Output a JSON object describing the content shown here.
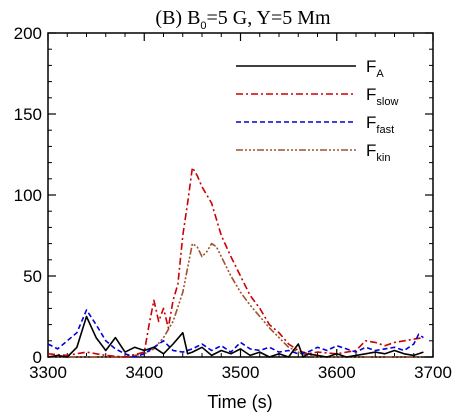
{
  "chart_data": {
    "type": "line",
    "title": "(B) B0=5 G,   Y=5 Mm",
    "title_parts": {
      "prefix": "(B) B",
      "sub": "0",
      "suffix": "=5 G,   Y=5 Mm"
    },
    "xlabel": "Time (s)",
    "ylabel": "",
    "xlim": [
      3300,
      3700
    ],
    "ylim": [
      0,
      200
    ],
    "x_ticks": [
      3300,
      3400,
      3500,
      3600,
      3700
    ],
    "y_ticks": [
      0,
      50,
      100,
      150,
      200
    ],
    "grid": false,
    "legend_position": "top-right",
    "series": [
      {
        "name": "FA",
        "label_main": "F",
        "label_sub": "A",
        "color": "#000000",
        "dash": "solid",
        "x": [
          3300,
          3310,
          3320,
          3330,
          3340,
          3350,
          3360,
          3370,
          3380,
          3390,
          3400,
          3410,
          3420,
          3430,
          3440,
          3445,
          3450,
          3460,
          3470,
          3480,
          3490,
          3500,
          3510,
          3520,
          3530,
          3540,
          3550,
          3555,
          3560,
          3565,
          3570,
          3580,
          3590,
          3600,
          3610,
          3620,
          3630,
          3640,
          3650,
          3660,
          3670,
          3680,
          3690
        ],
        "values": [
          0,
          1,
          0,
          6,
          25,
          12,
          4,
          12,
          3,
          6,
          4,
          6,
          2,
          8,
          15,
          2,
          3,
          6,
          1,
          4,
          2,
          5,
          1,
          3,
          0,
          2,
          0,
          4,
          8,
          0,
          2,
          1,
          0,
          2,
          0,
          1,
          2,
          3,
          2,
          4,
          2,
          1,
          3
        ]
      },
      {
        "name": "Fslow",
        "label_main": "F",
        "label_sub": "slow",
        "color": "#cc0000",
        "dash": "dashdot",
        "x": [
          3300,
          3320,
          3340,
          3360,
          3380,
          3400,
          3405,
          3410,
          3415,
          3420,
          3425,
          3430,
          3435,
          3440,
          3445,
          3450,
          3455,
          3460,
          3470,
          3480,
          3490,
          3500,
          3510,
          3520,
          3530,
          3540,
          3550,
          3560,
          3570,
          3580,
          3600,
          3620,
          3630,
          3640,
          3650,
          3660,
          3680,
          3690
        ],
        "values": [
          2,
          1,
          3,
          1,
          0,
          3,
          20,
          35,
          22,
          30,
          18,
          35,
          45,
          75,
          95,
          117,
          112,
          105,
          95,
          75,
          62,
          50,
          38,
          30,
          20,
          15,
          8,
          4,
          2,
          3,
          2,
          4,
          10,
          9,
          7,
          9,
          11,
          12
        ]
      },
      {
        "name": "Ffast",
        "label_main": "F",
        "label_sub": "fast",
        "color": "#0000dd",
        "dash": "dashed",
        "x": [
          3300,
          3310,
          3320,
          3330,
          3340,
          3350,
          3360,
          3370,
          3380,
          3390,
          3400,
          3410,
          3420,
          3430,
          3440,
          3450,
          3460,
          3470,
          3480,
          3490,
          3500,
          3510,
          3520,
          3530,
          3540,
          3550,
          3560,
          3570,
          3580,
          3590,
          3600,
          3610,
          3620,
          3630,
          3640,
          3650,
          3660,
          3670,
          3680,
          3685,
          3690
        ],
        "values": [
          8,
          5,
          10,
          15,
          29,
          20,
          10,
          5,
          2,
          0,
          2,
          6,
          10,
          4,
          3,
          5,
          8,
          4,
          7,
          3,
          9,
          5,
          4,
          6,
          3,
          4,
          2,
          3,
          6,
          4,
          7,
          5,
          3,
          6,
          4,
          5,
          6,
          4,
          8,
          14,
          12
        ]
      },
      {
        "name": "Fkin",
        "label_main": "F",
        "label_sub": "kin",
        "color": "#a0522d",
        "dash": "dashdotdotdot",
        "x": [
          3300,
          3340,
          3380,
          3400,
          3410,
          3420,
          3430,
          3440,
          3445,
          3450,
          3455,
          3460,
          3465,
          3470,
          3475,
          3480,
          3490,
          3500,
          3510,
          3520,
          3530,
          3540,
          3550,
          3560,
          3570,
          3580,
          3600,
          3620,
          3640,
          3660,
          3690
        ],
        "values": [
          0,
          0,
          0,
          2,
          5,
          12,
          22,
          40,
          55,
          70,
          68,
          62,
          65,
          70,
          68,
          62,
          50,
          40,
          32,
          25,
          18,
          12,
          6,
          3,
          1,
          0,
          0,
          0,
          0,
          0,
          0
        ]
      }
    ]
  }
}
